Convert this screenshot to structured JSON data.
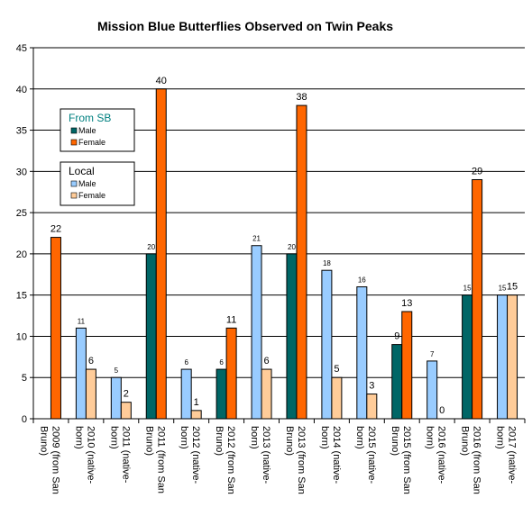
{
  "chart_data": {
    "type": "bar",
    "title": "Mission  Blue Butterflies Observed on Twin Peaks",
    "xlabel": "",
    "ylabel": "",
    "ylim": [
      0,
      45
    ],
    "yticks": [
      0,
      5,
      10,
      15,
      20,
      25,
      30,
      35,
      40,
      45
    ],
    "grid": true,
    "legend_position": "left",
    "categories": [
      [
        "2009 (from San",
        "Bruno)"
      ],
      [
        "2010 (native-",
        "born)"
      ],
      [
        "2011 (native-",
        "born)"
      ],
      [
        "2011 (from San",
        "Bruno)"
      ],
      [
        "2012 (native-",
        "born)"
      ],
      [
        "2012 (from San",
        "Bruno)"
      ],
      [
        "2013 (native-",
        "born)"
      ],
      [
        "2013 (from San",
        "Bruno)"
      ],
      [
        "2014 (native-",
        "born)"
      ],
      [
        "2015 (native-",
        "born)"
      ],
      [
        "2015 (from San",
        "Bruno)"
      ],
      [
        "2016 (native-",
        "born)"
      ],
      [
        "2016 (from San",
        "Bruno)"
      ],
      [
        "2017 (native-",
        "born)"
      ]
    ],
    "series_colors": {
      "sb_male": "#006666",
      "sb_female": "#ff6600",
      "local_male": "#99ccff",
      "local_female": "#ffcc99"
    },
    "bars": [
      {
        "category": 0,
        "series": "sb_female",
        "value": 22,
        "label": "22"
      },
      {
        "category": 1,
        "series": "local_male",
        "value": 11,
        "label": "11"
      },
      {
        "category": 1,
        "series": "local_female",
        "value": 6,
        "label": "6"
      },
      {
        "category": 2,
        "series": "local_male",
        "value": 5,
        "label": "5"
      },
      {
        "category": 2,
        "series": "local_female",
        "value": 2,
        "label": "2"
      },
      {
        "category": 3,
        "series": "sb_male",
        "value": 20,
        "label": "20"
      },
      {
        "category": 3,
        "series": "sb_female",
        "value": 40,
        "label": "40"
      },
      {
        "category": 4,
        "series": "local_male",
        "value": 6,
        "label": "6"
      },
      {
        "category": 4,
        "series": "local_female",
        "value": 1,
        "label": "1"
      },
      {
        "category": 5,
        "series": "sb_male",
        "value": 6,
        "label": "6"
      },
      {
        "category": 5,
        "series": "sb_female",
        "value": 11,
        "label": "11"
      },
      {
        "category": 6,
        "series": "local_male",
        "value": 21,
        "label": "21"
      },
      {
        "category": 6,
        "series": "local_female",
        "value": 6,
        "label": "6"
      },
      {
        "category": 7,
        "series": "sb_male",
        "value": 20,
        "label": "20"
      },
      {
        "category": 7,
        "series": "sb_female",
        "value": 38,
        "label": "38"
      },
      {
        "category": 8,
        "series": "local_male",
        "value": 18,
        "label": "18"
      },
      {
        "category": 8,
        "series": "local_female",
        "value": 5,
        "label": "5"
      },
      {
        "category": 9,
        "series": "local_male",
        "value": 16,
        "label": "16"
      },
      {
        "category": 9,
        "series": "local_female",
        "value": 3,
        "label": "3"
      },
      {
        "category": 10,
        "series": "sb_male",
        "value": 9,
        "label": "9"
      },
      {
        "category": 10,
        "series": "sb_female",
        "value": 13,
        "label": "13"
      },
      {
        "category": 11,
        "series": "local_male",
        "value": 7,
        "label": "7"
      },
      {
        "category": 11,
        "series": "local_female",
        "value": 0,
        "label": "0"
      },
      {
        "category": 12,
        "series": "sb_male",
        "value": 15,
        "label": "15"
      },
      {
        "category": 12,
        "series": "sb_female",
        "value": 29,
        "label": "29"
      },
      {
        "category": 13,
        "series": "local_male",
        "value": 15,
        "label": "15"
      },
      {
        "category": 13,
        "series": "local_female",
        "value": 15,
        "label": "15"
      }
    ],
    "legends": [
      {
        "heading": "From SB",
        "heading_color": "#008080",
        "items": [
          {
            "label": "Male",
            "series": "sb_male"
          },
          {
            "label": "Female",
            "series": "sb_female"
          }
        ]
      },
      {
        "heading": "Local",
        "heading_color": "#000000",
        "items": [
          {
            "label": "Male",
            "series": "local_male"
          },
          {
            "label": "Female",
            "series": "local_female"
          }
        ]
      }
    ]
  }
}
